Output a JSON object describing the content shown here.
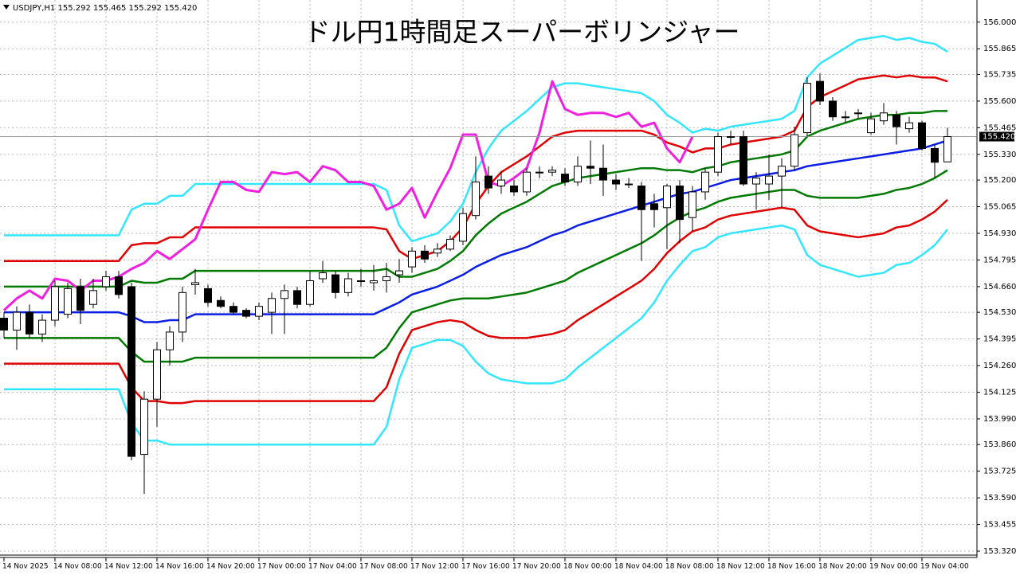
{
  "chart_data": {
    "type": "candlestick",
    "header": "USDJPY,H1  155.292 155.465 155.292 155.420",
    "title": "ドル円1時間足スーパーボリンジャー",
    "categories": [
      "14 Nov 2025",
      null,
      null,
      null,
      "14 Nov 08:00",
      null,
      null,
      null,
      "14 Nov 12:00",
      null,
      null,
      null,
      "14 Nov 16:00",
      null,
      null,
      null,
      "14 Nov 20:00",
      null,
      null,
      null,
      "17 Nov 00:00",
      null,
      null,
      null,
      "17 Nov 04:00",
      null,
      null,
      null,
      "17 Nov 08:00",
      null,
      null,
      null,
      "17 Nov 12:00",
      null,
      null,
      null,
      "17 Nov 16:00",
      null,
      null,
      null,
      "17 Nov 20:00",
      null,
      null,
      null,
      "18 Nov 00:00",
      null,
      null,
      null,
      "18 Nov 04:00",
      null,
      null,
      null,
      "18 Nov 08:00",
      null,
      null,
      null,
      "18 Nov 12:00",
      null,
      null,
      null,
      "18 Nov 16:00",
      null,
      null,
      null,
      "18 Nov 20:00",
      null,
      null,
      null,
      "19 Nov 00:00",
      null,
      null,
      null,
      "19 Nov 04:00",
      null,
      null
    ],
    "open": [
      154.5,
      154.44,
      154.53,
      154.42,
      154.49,
      154.52,
      154.66,
      154.57,
      154.66,
      154.71,
      154.66,
      153.81,
      154.09,
      154.34,
      154.43,
      154.67,
      154.65,
      154.59,
      154.56,
      154.54,
      154.51,
      154.53,
      154.6,
      154.64,
      154.57,
      154.7,
      154.72,
      154.63,
      154.69,
      154.68,
      154.69,
      154.72,
      154.76,
      154.84,
      154.83,
      154.85,
      154.89,
      155.02,
      155.22,
      155.17,
      155.17,
      155.14,
      155.24,
      155.24,
      155.23,
      155.19,
      155.27,
      155.26,
      155.2,
      155.18,
      155.17,
      155.08,
      155.06,
      155.17,
      155.01,
      155.14,
      155.24,
      155.42,
      155.42,
      155.18,
      155.18,
      155.22,
      155.27,
      155.44,
      155.7,
      155.6,
      155.52,
      155.54,
      155.44,
      155.5,
      155.53,
      155.46,
      155.49,
      155.36,
      155.292
    ],
    "high": [
      154.53,
      154.56,
      154.57,
      154.52,
      154.69,
      154.68,
      154.7,
      154.7,
      154.74,
      154.74,
      154.68,
      154.13,
      154.38,
      154.46,
      154.66,
      154.75,
      154.67,
      154.61,
      154.58,
      154.55,
      154.58,
      154.63,
      154.67,
      154.66,
      154.74,
      154.79,
      154.74,
      154.73,
      154.75,
      154.77,
      154.78,
      154.8,
      154.86,
      154.87,
      154.88,
      154.92,
      155.06,
      155.32,
      155.27,
      155.24,
      155.2,
      155.26,
      155.27,
      155.27,
      155.26,
      155.32,
      155.4,
      155.38,
      155.23,
      155.21,
      155.19,
      155.13,
      155.18,
      155.2,
      155.17,
      155.26,
      155.44,
      155.45,
      155.45,
      155.24,
      155.33,
      155.31,
      155.47,
      155.72,
      155.74,
      155.62,
      155.55,
      155.56,
      155.54,
      155.59,
      155.55,
      155.52,
      155.5,
      155.38,
      155.465
    ],
    "low": [
      154.4,
      154.34,
      154.4,
      154.38,
      154.46,
      154.5,
      154.47,
      154.55,
      154.64,
      154.6,
      153.78,
      153.61,
      153.95,
      154.26,
      154.38,
      154.62,
      154.56,
      154.55,
      154.52,
      154.5,
      154.49,
      154.42,
      154.42,
      154.55,
      154.56,
      154.68,
      154.6,
      154.61,
      154.66,
      154.64,
      154.63,
      154.68,
      154.73,
      154.78,
      154.81,
      154.84,
      154.87,
      155.0,
      155.13,
      155.13,
      155.12,
      155.12,
      155.21,
      155.22,
      155.17,
      155.17,
      155.18,
      155.12,
      155.15,
      155.16,
      154.79,
      154.96,
      154.85,
      154.88,
      154.94,
      155.1,
      155.22,
      155.38,
      155.17,
      155.05,
      155.1,
      155.06,
      155.25,
      155.42,
      155.58,
      155.5,
      155.49,
      155.51,
      155.43,
      155.48,
      155.38,
      155.44,
      155.35,
      155.21,
      155.292
    ],
    "close": [
      154.44,
      154.53,
      154.42,
      154.49,
      154.66,
      154.65,
      154.54,
      154.64,
      154.71,
      154.62,
      153.8,
      154.09,
      154.34,
      154.43,
      154.63,
      154.68,
      154.58,
      154.56,
      154.53,
      154.51,
      154.56,
      154.6,
      154.64,
      154.57,
      154.69,
      154.73,
      154.63,
      154.7,
      154.69,
      154.69,
      154.71,
      154.74,
      154.84,
      154.8,
      154.85,
      154.9,
      155.03,
      155.19,
      155.16,
      155.2,
      155.14,
      155.24,
      155.24,
      155.25,
      155.19,
      155.27,
      155.26,
      155.2,
      155.18,
      155.18,
      155.05,
      155.05,
      155.17,
      155.0,
      155.14,
      155.24,
      155.42,
      155.42,
      155.18,
      155.21,
      155.22,
      155.27,
      155.43,
      155.69,
      155.6,
      155.52,
      155.52,
      155.54,
      155.51,
      155.54,
      155.47,
      155.49,
      155.36,
      155.29,
      155.42
    ],
    "up_color": "#ffffff",
    "down_color": "#000000",
    "series": [
      {
        "color": "#33e6ff",
        "values": [
          154.92,
          154.92,
          154.92,
          154.92,
          154.92,
          154.92,
          154.92,
          154.92,
          154.92,
          154.92,
          155.05,
          155.08,
          155.08,
          155.12,
          155.12,
          155.18,
          155.18,
          155.18,
          155.18,
          155.18,
          155.18,
          155.18,
          155.18,
          155.18,
          155.18,
          155.18,
          155.18,
          155.18,
          155.18,
          155.18,
          155.15,
          154.97,
          154.89,
          154.91,
          154.93,
          154.99,
          155.08,
          155.24,
          155.36,
          155.45,
          155.5,
          155.55,
          155.61,
          155.67,
          155.69,
          155.69,
          155.68,
          155.67,
          155.66,
          155.65,
          155.64,
          155.6,
          155.53,
          155.49,
          155.44,
          155.46,
          155.45,
          155.47,
          155.48,
          155.49,
          155.5,
          155.51,
          155.55,
          155.72,
          155.79,
          155.83,
          155.87,
          155.91,
          155.92,
          155.93,
          155.91,
          155.92,
          155.9,
          155.89,
          155.85
        ]
      },
      {
        "color": "#e00000",
        "values": [
          154.79,
          154.79,
          154.79,
          154.79,
          154.79,
          154.79,
          154.79,
          154.79,
          154.79,
          154.79,
          154.87,
          154.88,
          154.88,
          154.91,
          154.91,
          154.96,
          154.96,
          154.96,
          154.96,
          154.96,
          154.96,
          154.96,
          154.96,
          154.96,
          154.96,
          154.96,
          154.96,
          154.96,
          154.96,
          154.96,
          154.95,
          154.84,
          154.8,
          154.82,
          154.84,
          154.89,
          154.96,
          155.08,
          155.17,
          155.24,
          155.28,
          155.32,
          155.37,
          155.42,
          155.44,
          155.45,
          155.45,
          155.45,
          155.45,
          155.45,
          155.45,
          155.43,
          155.39,
          155.37,
          155.34,
          155.36,
          155.36,
          155.38,
          155.39,
          155.4,
          155.41,
          155.42,
          155.45,
          155.57,
          155.62,
          155.65,
          155.68,
          155.71,
          155.72,
          155.73,
          155.72,
          155.73,
          155.72,
          155.72,
          155.7
        ]
      },
      {
        "color": "#007a00",
        "values": [
          154.66,
          154.66,
          154.66,
          154.66,
          154.66,
          154.66,
          154.66,
          154.66,
          154.66,
          154.66,
          154.69,
          154.68,
          154.68,
          154.7,
          154.7,
          154.74,
          154.74,
          154.74,
          154.74,
          154.74,
          154.74,
          154.74,
          154.74,
          154.74,
          154.74,
          154.74,
          154.74,
          154.74,
          154.74,
          154.74,
          154.75,
          154.71,
          154.71,
          154.73,
          154.75,
          154.79,
          154.84,
          154.92,
          154.98,
          155.03,
          155.06,
          155.09,
          155.13,
          155.17,
          155.19,
          155.21,
          155.22,
          155.23,
          155.24,
          155.25,
          155.26,
          155.26,
          155.25,
          155.25,
          155.24,
          155.26,
          155.27,
          155.29,
          155.3,
          155.31,
          155.32,
          155.33,
          155.35,
          155.42,
          155.45,
          155.47,
          155.49,
          155.51,
          155.52,
          155.53,
          155.53,
          155.54,
          155.54,
          155.55,
          155.55
        ]
      },
      {
        "color": "#0a1ee6",
        "values": [
          154.53,
          154.53,
          154.53,
          154.53,
          154.53,
          154.53,
          154.53,
          154.53,
          154.53,
          154.53,
          154.51,
          154.48,
          154.48,
          154.49,
          154.49,
          154.52,
          154.52,
          154.52,
          154.52,
          154.52,
          154.52,
          154.52,
          154.52,
          154.52,
          154.52,
          154.52,
          154.52,
          154.52,
          154.52,
          154.52,
          154.55,
          154.58,
          154.62,
          154.64,
          154.66,
          154.69,
          154.72,
          154.76,
          154.79,
          154.82,
          154.84,
          154.86,
          154.89,
          154.92,
          154.94,
          154.97,
          154.99,
          155.01,
          155.03,
          155.05,
          155.07,
          155.09,
          155.11,
          155.13,
          155.14,
          155.16,
          155.18,
          155.2,
          155.21,
          155.22,
          155.23,
          155.24,
          155.25,
          155.27,
          155.28,
          155.29,
          155.3,
          155.31,
          155.32,
          155.33,
          155.34,
          155.35,
          155.36,
          155.38,
          155.4
        ]
      },
      {
        "color": "#007a00",
        "values": [
          154.4,
          154.4,
          154.4,
          154.4,
          154.4,
          154.4,
          154.4,
          154.4,
          154.4,
          154.4,
          154.33,
          154.28,
          154.28,
          154.28,
          154.28,
          154.3,
          154.3,
          154.3,
          154.3,
          154.3,
          154.3,
          154.3,
          154.3,
          154.3,
          154.3,
          154.3,
          154.3,
          154.3,
          154.3,
          154.3,
          154.35,
          154.45,
          154.53,
          154.55,
          154.57,
          154.59,
          154.6,
          154.6,
          154.6,
          154.61,
          154.62,
          154.63,
          154.65,
          154.67,
          154.69,
          154.73,
          154.76,
          154.79,
          154.82,
          154.85,
          154.88,
          154.92,
          154.97,
          155.01,
          155.04,
          155.06,
          155.09,
          155.11,
          155.12,
          155.13,
          155.14,
          155.15,
          155.15,
          155.12,
          155.11,
          155.11,
          155.11,
          155.11,
          155.12,
          155.13,
          155.15,
          155.16,
          155.18,
          155.21,
          155.25
        ]
      },
      {
        "color": "#e00000",
        "values": [
          154.27,
          154.27,
          154.27,
          154.27,
          154.27,
          154.27,
          154.27,
          154.27,
          154.27,
          154.27,
          154.15,
          154.08,
          154.08,
          154.07,
          154.07,
          154.08,
          154.08,
          154.08,
          154.08,
          154.08,
          154.08,
          154.08,
          154.08,
          154.08,
          154.08,
          154.08,
          154.08,
          154.08,
          154.08,
          154.08,
          154.15,
          154.32,
          154.44,
          154.46,
          154.48,
          154.49,
          154.48,
          154.44,
          154.41,
          154.4,
          154.4,
          154.4,
          154.41,
          154.42,
          154.44,
          154.49,
          154.53,
          154.57,
          154.61,
          154.65,
          154.69,
          154.75,
          154.83,
          154.89,
          154.94,
          154.96,
          155.0,
          155.02,
          155.03,
          155.04,
          155.05,
          155.06,
          155.05,
          154.97,
          154.94,
          154.93,
          154.92,
          154.91,
          154.92,
          154.93,
          154.96,
          154.97,
          155.0,
          155.04,
          155.1
        ]
      },
      {
        "color": "#33e6ff",
        "values": [
          154.14,
          154.14,
          154.14,
          154.14,
          154.14,
          154.14,
          154.14,
          154.14,
          154.14,
          154.14,
          153.97,
          153.88,
          153.88,
          153.86,
          153.86,
          153.86,
          153.86,
          153.86,
          153.86,
          153.86,
          153.86,
          153.86,
          153.86,
          153.86,
          153.86,
          153.86,
          153.86,
          153.86,
          153.86,
          153.86,
          153.95,
          154.19,
          154.35,
          154.37,
          154.39,
          154.39,
          154.36,
          154.28,
          154.22,
          154.19,
          154.18,
          154.17,
          154.17,
          154.17,
          154.19,
          154.25,
          154.3,
          154.35,
          154.4,
          154.45,
          154.5,
          154.58,
          154.69,
          154.77,
          154.84,
          154.86,
          154.91,
          154.93,
          154.94,
          154.95,
          154.96,
          154.97,
          154.95,
          154.82,
          154.77,
          154.75,
          154.73,
          154.71,
          154.72,
          154.73,
          154.77,
          154.78,
          154.82,
          154.87,
          154.95
        ]
      },
      {
        "color": "#f020e0",
        "values": [
          154.54,
          154.6,
          154.64,
          154.6,
          154.7,
          154.69,
          154.64,
          154.69,
          154.69,
          154.71,
          154.75,
          154.78,
          154.84,
          154.8,
          154.85,
          154.9,
          155.05,
          155.19,
          155.19,
          155.15,
          155.14,
          155.24,
          155.23,
          155.24,
          155.19,
          155.27,
          155.25,
          155.19,
          155.19,
          155.17,
          155.05,
          155.08,
          155.16,
          155.01,
          155.14,
          155.26,
          155.43,
          155.43,
          155.19,
          155.17,
          155.21,
          155.26,
          155.44,
          155.7,
          155.56,
          155.53,
          155.54,
          155.54,
          155.52,
          155.54,
          155.47,
          155.49,
          155.36,
          155.29,
          155.42,
          null,
          null,
          null,
          null,
          null,
          null,
          null,
          null,
          null,
          null,
          null,
          null,
          null,
          null,
          null,
          null,
          null,
          null,
          null,
          null
        ]
      }
    ],
    "current_price": {
      "value": 155.42,
      "label": "155.420"
    },
    "ylim": [
      153.3,
      156.1
    ],
    "yticks": [
      {
        "value": 156.0,
        "label": "156.000"
      },
      {
        "value": 155.865,
        "label": "155.865"
      },
      {
        "value": 155.735,
        "label": "155.735"
      },
      {
        "value": 155.6,
        "label": "155.600"
      },
      {
        "value": 155.465,
        "label": "155.465"
      },
      {
        "value": 155.33,
        "label": "155.330"
      },
      {
        "value": 155.2,
        "label": "155.200"
      },
      {
        "value": 155.065,
        "label": "155.065"
      },
      {
        "value": 154.93,
        "label": "154.930"
      },
      {
        "value": 154.795,
        "label": "154.795"
      },
      {
        "value": 154.66,
        "label": "154.660"
      },
      {
        "value": 154.53,
        "label": "154.530"
      },
      {
        "value": 154.395,
        "label": "154.395"
      },
      {
        "value": 154.26,
        "label": "154.260"
      },
      {
        "value": 154.125,
        "label": "154.125"
      },
      {
        "value": 153.99,
        "label": "153.990"
      },
      {
        "value": 153.86,
        "label": "153.860"
      },
      {
        "value": 153.725,
        "label": "153.725"
      },
      {
        "value": 153.59,
        "label": "153.590"
      },
      {
        "value": 153.455,
        "label": "153.455"
      },
      {
        "value": 153.32,
        "label": "153.320"
      }
    ],
    "grid": true
  }
}
